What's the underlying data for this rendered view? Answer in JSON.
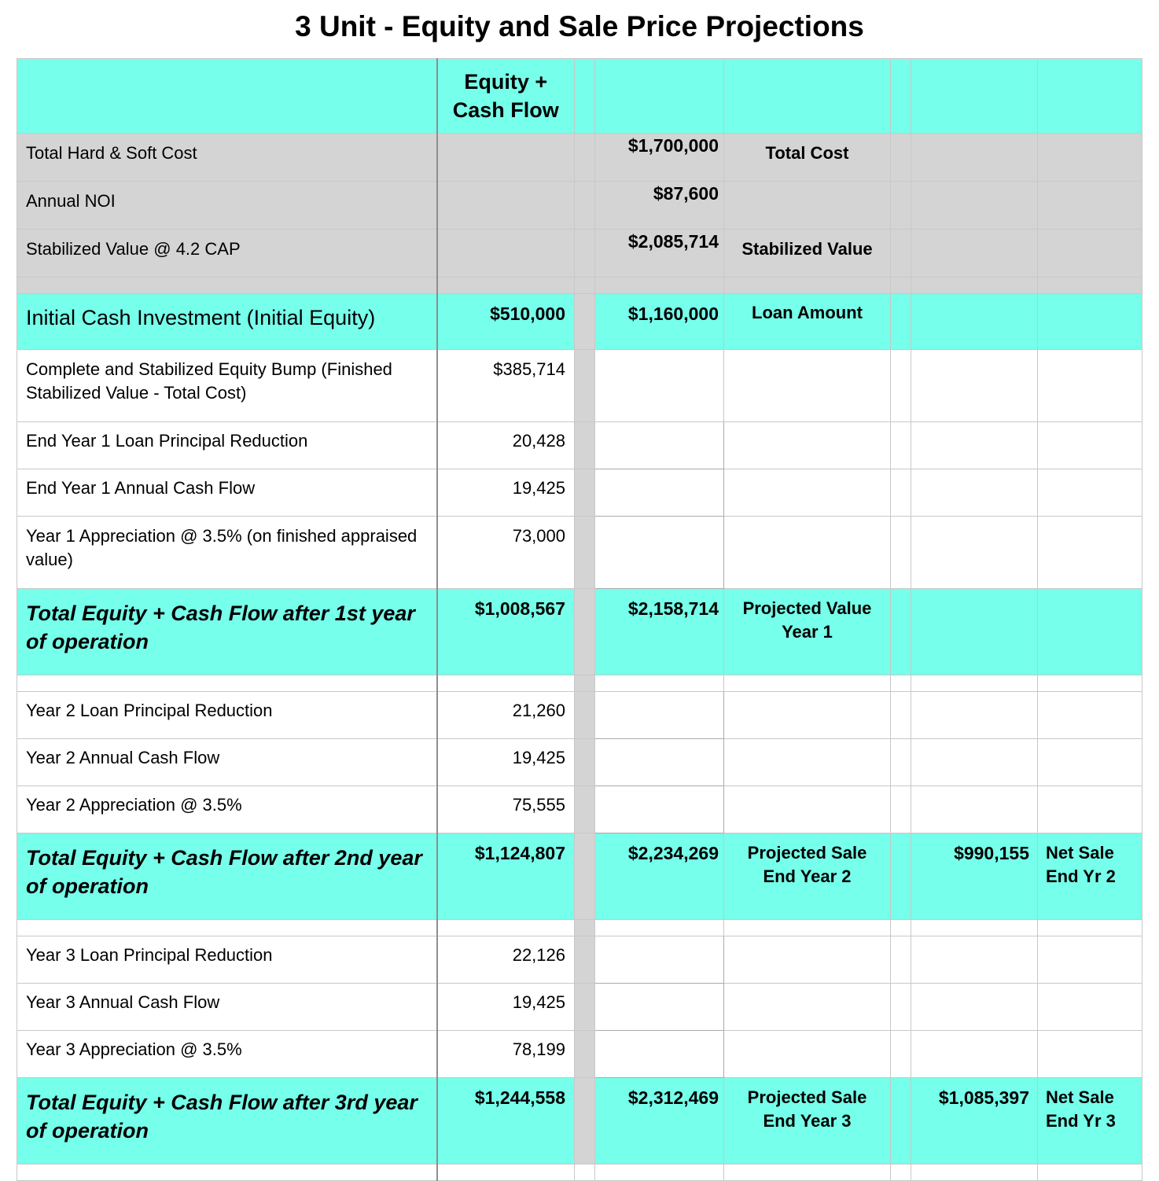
{
  "title": "3 Unit - Equity and Sale Price Projections",
  "header": {
    "col1": "Equity +\nCash Flow"
  },
  "rows": {
    "hard_soft": {
      "label": "Total Hard & Soft Cost",
      "value": "$1,700,000",
      "note": "Total Cost"
    },
    "noi": {
      "label": "Annual NOI",
      "value": "$87,600"
    },
    "stabilized": {
      "label": "Stabilized Value @ 4.2 CAP",
      "value": "$2,085,714",
      "note": "Stabilized Value"
    },
    "initial": {
      "label": "Initial Cash Investment (Initial Equity)",
      "equity": "$510,000",
      "value": "$1,160,000",
      "note": "Loan Amount"
    },
    "bump": {
      "label": "Complete and Stabilized Equity Bump (Finished Stabilized Value - Total Cost)",
      "equity": "$385,714"
    },
    "y1_principal": {
      "label": "End Year 1 Loan Principal Reduction",
      "equity": "20,428"
    },
    "y1_cash": {
      "label": "End Year 1 Annual Cash Flow",
      "equity": "19,425"
    },
    "y1_appr": {
      "label": "Year 1 Appreciation @ 3.5% (on finished appraised value)",
      "equity": "73,000"
    },
    "y1_total": {
      "label": "Total Equity + Cash Flow after 1st year of operation",
      "equity": "$1,008,567",
      "value": "$2,158,714",
      "note": "Projected Value Year 1"
    },
    "y2_principal": {
      "label": "Year 2 Loan Principal Reduction",
      "equity": "21,260"
    },
    "y2_cash": {
      "label": "Year 2 Annual Cash Flow",
      "equity": "19,425"
    },
    "y2_appr": {
      "label": "Year 2 Appreciation @ 3.5%",
      "equity": "75,555"
    },
    "y2_total": {
      "label": "Total Equity + Cash Flow after 2nd year of operation",
      "equity": "$1,124,807",
      "value": "$2,234,269",
      "note": "Projected Sale End Year 2",
      "net": "$990,155",
      "net_note": "Net Sale End Yr 2"
    },
    "y3_principal": {
      "label": "Year 3 Loan Principal Reduction",
      "equity": "22,126"
    },
    "y3_cash": {
      "label": "Year 3 Annual Cash Flow",
      "equity": "19,425"
    },
    "y3_appr": {
      "label": "Year 3 Appreciation @ 3.5%",
      "equity": "78,199"
    },
    "y3_total": {
      "label": "Total Equity + Cash Flow after 3rd year of operation",
      "equity": "$1,244,558",
      "value": "$2,312,469",
      "note": "Projected Sale End Year 3",
      "net": "$1,085,397",
      "net_note": "Net Sale End Yr 3"
    }
  }
}
